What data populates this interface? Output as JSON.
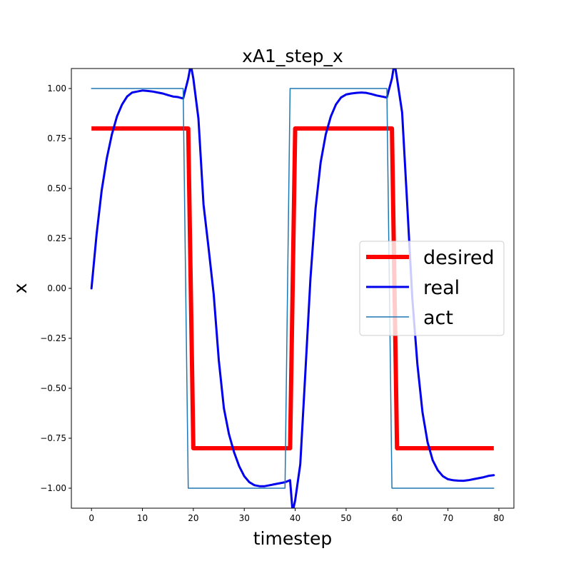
{
  "chart_data": {
    "type": "line",
    "title": "xA1_step_x",
    "xlabel": "timestep",
    "ylabel": "x",
    "xlim": [
      -3.95,
      82.95
    ],
    "ylim": [
      -1.1,
      1.1
    ],
    "xticks": [
      0,
      10,
      20,
      30,
      40,
      50,
      60,
      70,
      80
    ],
    "yticks": [
      -1.0,
      -0.75,
      -0.5,
      -0.25,
      0.0,
      0.25,
      0.5,
      0.75,
      1.0
    ],
    "ytick_labels": [
      "−1.00",
      "−0.75",
      "−0.50",
      "−0.25",
      "0.00",
      "0.25",
      "0.50",
      "0.75",
      "1.00"
    ],
    "legend_position": "center-right",
    "grid": false,
    "series": [
      {
        "name": "desired",
        "color": "#ff0000",
        "points": [
          [
            0,
            0.8
          ],
          [
            19,
            0.8
          ],
          [
            20,
            -0.8
          ],
          [
            39,
            -0.8
          ],
          [
            40,
            0.8
          ],
          [
            59,
            0.8
          ],
          [
            60,
            -0.8
          ],
          [
            79,
            -0.8
          ]
        ]
      },
      {
        "name": "real",
        "color": "#0000ee",
        "points": [
          [
            0,
            0.0
          ],
          [
            1,
            0.27
          ],
          [
            2,
            0.49
          ],
          [
            3,
            0.65
          ],
          [
            4,
            0.77
          ],
          [
            5,
            0.86
          ],
          [
            6,
            0.92
          ],
          [
            7,
            0.96
          ],
          [
            8,
            0.98
          ],
          [
            9,
            0.985
          ],
          [
            10,
            0.99
          ],
          [
            11,
            0.988
          ],
          [
            12,
            0.985
          ],
          [
            13,
            0.98
          ],
          [
            14,
            0.975
          ],
          [
            15,
            0.967
          ],
          [
            16,
            0.96
          ],
          [
            17,
            0.957
          ],
          [
            18,
            0.95
          ],
          [
            19,
            1.05
          ],
          [
            19.5,
            1.12
          ],
          [
            20,
            1.05
          ],
          [
            21,
            0.85
          ],
          [
            22,
            0.42
          ],
          [
            23,
            0.2
          ],
          [
            24,
            -0.03
          ],
          [
            25,
            -0.36
          ],
          [
            26,
            -0.6
          ],
          [
            27,
            -0.73
          ],
          [
            28,
            -0.82
          ],
          [
            29,
            -0.89
          ],
          [
            30,
            -0.94
          ],
          [
            31,
            -0.97
          ],
          [
            32,
            -0.985
          ],
          [
            33,
            -0.99
          ],
          [
            34,
            -0.99
          ],
          [
            35,
            -0.985
          ],
          [
            36,
            -0.98
          ],
          [
            37,
            -0.975
          ],
          [
            38,
            -0.97
          ],
          [
            39,
            -0.96
          ],
          [
            39.5,
            -1.12
          ],
          [
            40,
            -1.06
          ],
          [
            41,
            -0.88
          ],
          [
            42,
            -0.42
          ],
          [
            43,
            0.05
          ],
          [
            44,
            0.4
          ],
          [
            45,
            0.63
          ],
          [
            46,
            0.77
          ],
          [
            47,
            0.86
          ],
          [
            48,
            0.92
          ],
          [
            49,
            0.955
          ],
          [
            50,
            0.97
          ],
          [
            51,
            0.975
          ],
          [
            52,
            0.978
          ],
          [
            53,
            0.98
          ],
          [
            54,
            0.978
          ],
          [
            55,
            0.972
          ],
          [
            56,
            0.965
          ],
          [
            57,
            0.96
          ],
          [
            58,
            0.955
          ],
          [
            59,
            1.05
          ],
          [
            59.5,
            1.13
          ],
          [
            60,
            1.05
          ],
          [
            61,
            0.88
          ],
          [
            62,
            0.42
          ],
          [
            63,
            -0.05
          ],
          [
            64,
            -0.38
          ],
          [
            65,
            -0.62
          ],
          [
            66,
            -0.77
          ],
          [
            67,
            -0.86
          ],
          [
            68,
            -0.91
          ],
          [
            69,
            -0.94
          ],
          [
            70,
            -0.955
          ],
          [
            71,
            -0.96
          ],
          [
            72,
            -0.962
          ],
          [
            73,
            -0.963
          ],
          [
            74,
            -0.96
          ],
          [
            75,
            -0.955
          ],
          [
            76,
            -0.95
          ],
          [
            77,
            -0.945
          ],
          [
            78,
            -0.938
          ],
          [
            79,
            -0.935
          ]
        ]
      },
      {
        "name": "act",
        "color": "#1f77b4",
        "points": [
          [
            0,
            1.0
          ],
          [
            18,
            1.0
          ],
          [
            19,
            -1.0
          ],
          [
            38,
            -1.0
          ],
          [
            39,
            1.0
          ],
          [
            58,
            1.0
          ],
          [
            59,
            -1.0
          ],
          [
            79,
            -1.0
          ]
        ]
      }
    ]
  }
}
